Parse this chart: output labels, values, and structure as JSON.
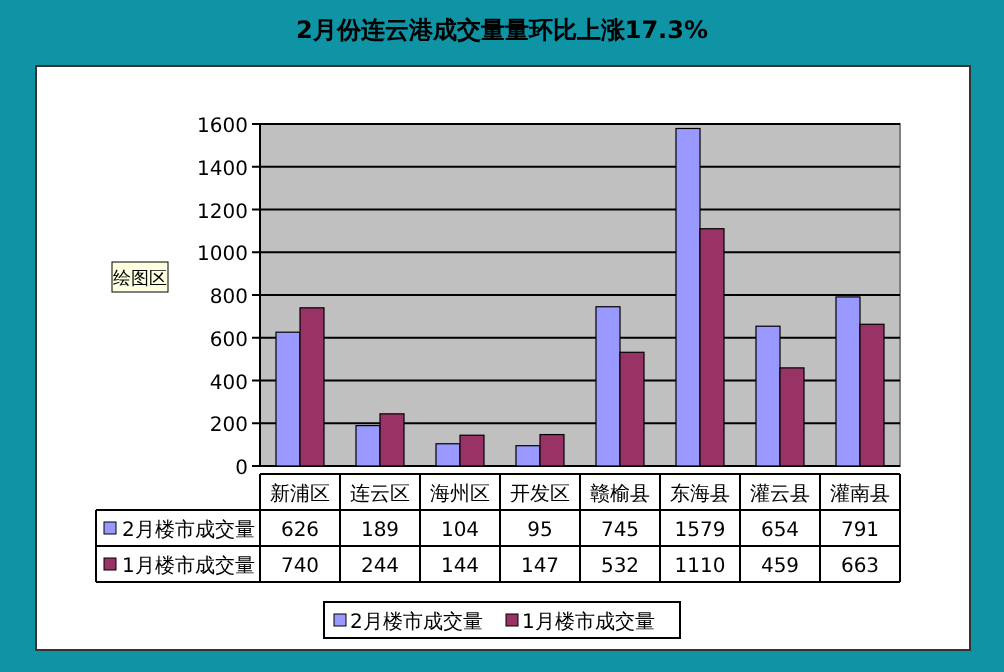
{
  "chart_data": {
    "type": "bar",
    "title": "2月份连云港成交量量环比上涨17.3%",
    "categories": [
      "新浦区",
      "连云区",
      "海州区",
      "开发区",
      "赣榆县",
      "东海县",
      "灌云县",
      "灌南县"
    ],
    "series": [
      {
        "name": "2月楼市成交量",
        "color": "#9999ff",
        "values": [
          626,
          189,
          104,
          95,
          745,
          1579,
          654,
          791
        ]
      },
      {
        "name": "1月楼市成交量",
        "color": "#993366",
        "values": [
          740,
          244,
          144,
          147,
          532,
          1110,
          459,
          663
        ]
      }
    ],
    "ylim": [
      0,
      1600
    ],
    "yticks": [
      0,
      200,
      400,
      600,
      800,
      1000,
      1200,
      1400,
      1600
    ],
    "grid": "y",
    "legend": "bottom",
    "data_labels": true,
    "annotations": [
      "绘图区"
    ]
  }
}
